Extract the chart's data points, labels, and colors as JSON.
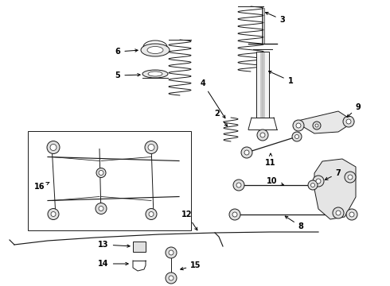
{
  "background_color": "#ffffff",
  "line_color": "#1a1a1a",
  "fig_width": 4.9,
  "fig_height": 3.6,
  "dpi": 100,
  "font_size": 7.0,
  "font_weight": "bold"
}
